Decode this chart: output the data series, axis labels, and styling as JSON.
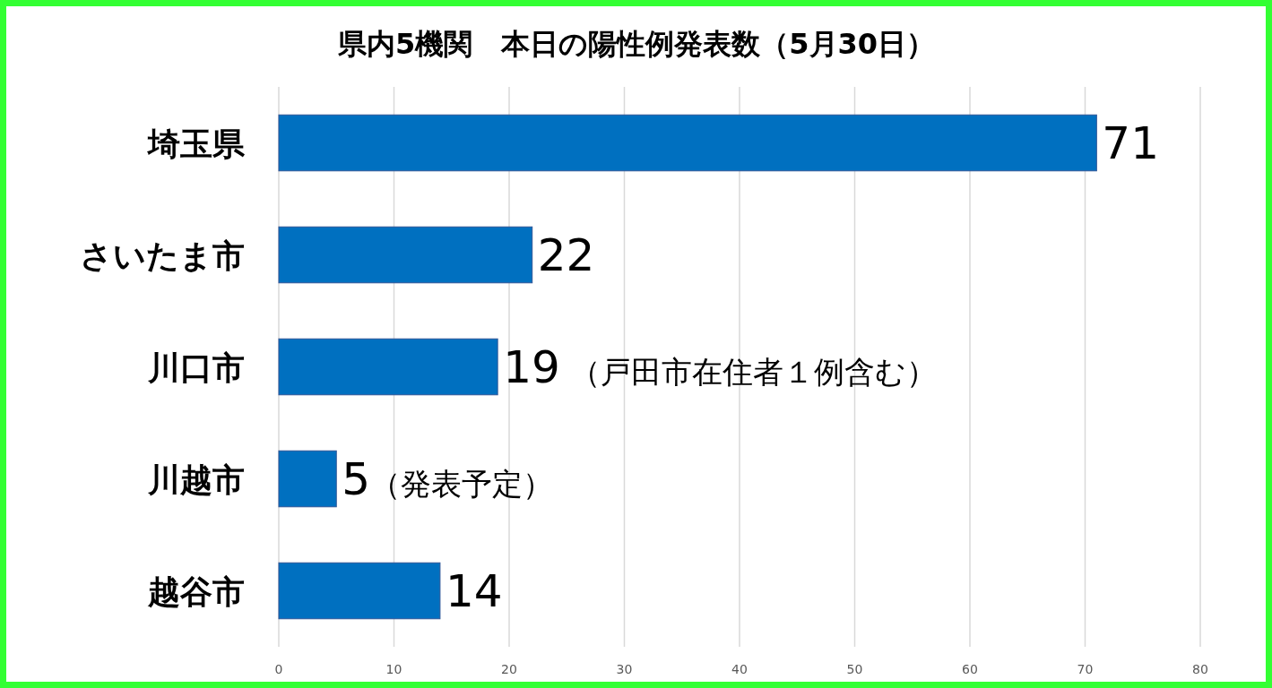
{
  "chart_data": {
    "type": "bar",
    "orientation": "horizontal",
    "title": "県内5機関　本日の陽性例発表数（5月30日）",
    "categories": [
      "埼玉県",
      "さいたま市",
      "川口市",
      "川越市",
      "越谷市"
    ],
    "values": [
      71,
      22,
      19,
      5,
      14
    ],
    "value_labels": [
      "71",
      "22",
      "19 （戸田市在住者１例含む）",
      "5（発表予定）",
      "14"
    ],
    "color": "#0070c0",
    "xlim": [
      0,
      80
    ],
    "xticks": [
      0,
      10,
      20,
      30,
      40,
      50,
      60,
      70,
      80
    ],
    "grid": "x"
  }
}
